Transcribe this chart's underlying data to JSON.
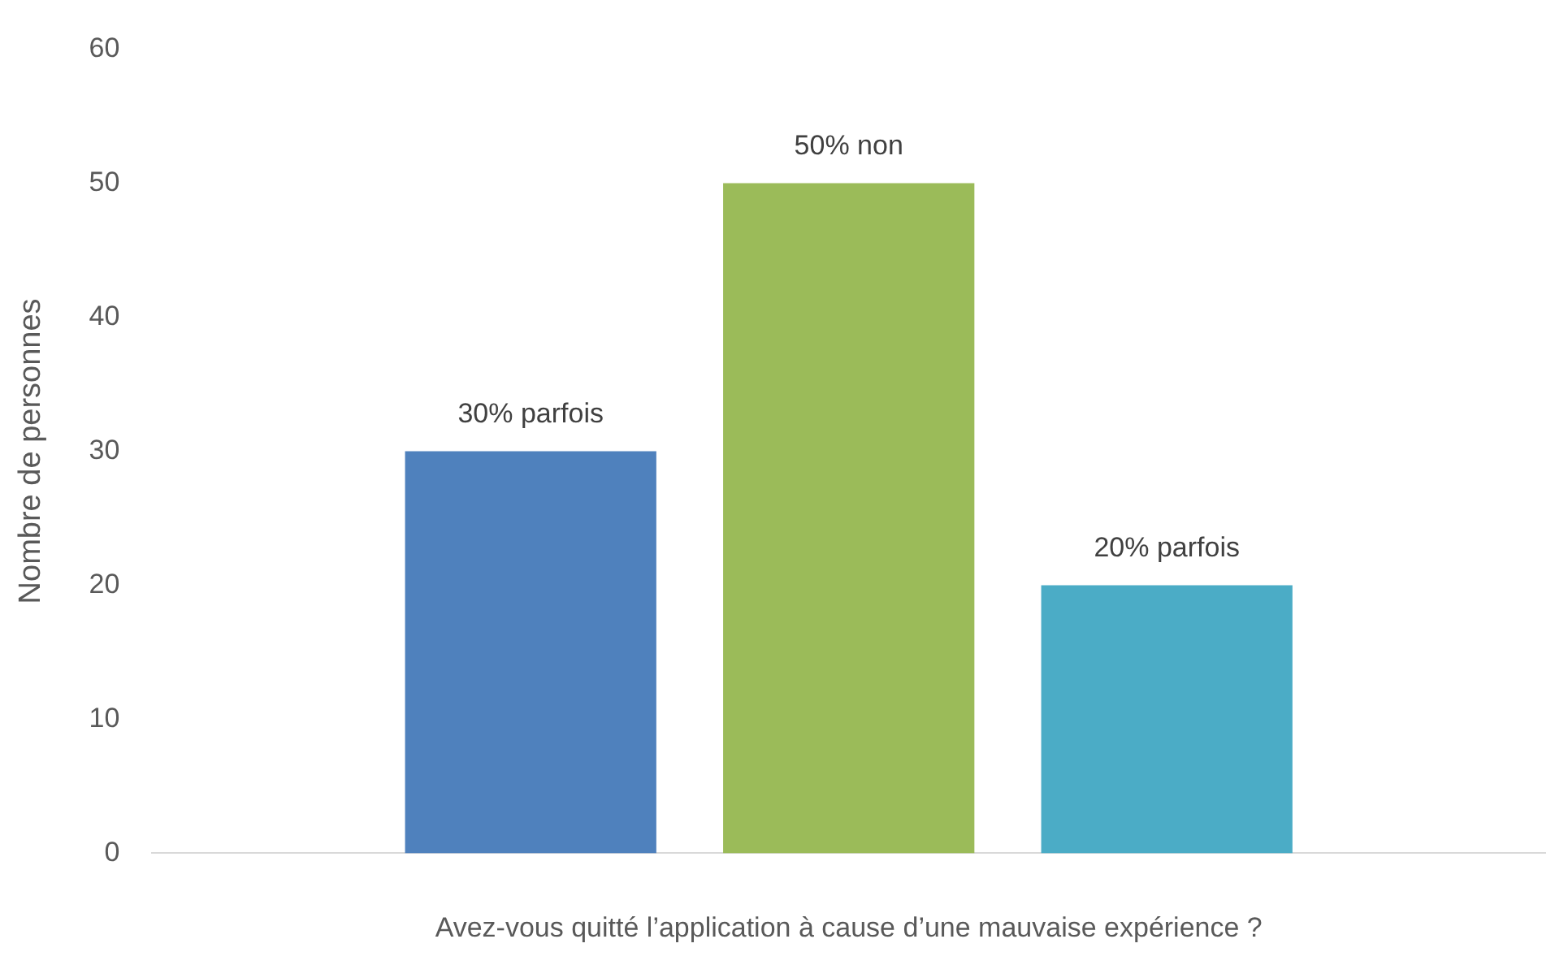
{
  "chart_data": {
    "type": "bar",
    "xlabel": "Avez-vous quitté l’application à cause d’une mauvaise expérience ?",
    "ylabel": "Nombre de personnes",
    "categories": [
      null
    ],
    "series": [
      {
        "color": "#4f81bd",
        "values": [
          30
        ],
        "value_labels": [
          "30% parfois"
        ]
      },
      {
        "color": "#9bbb59",
        "values": [
          50
        ],
        "value_labels": [
          "50% non"
        ]
      },
      {
        "color": "#4bacc6",
        "values": [
          20
        ],
        "value_labels": [
          "20% parfois"
        ]
      }
    ],
    "ylim": [
      0,
      60
    ],
    "yticks": [
      0,
      10,
      20,
      30,
      40,
      50,
      60
    ],
    "grid": false,
    "legend": false
  }
}
